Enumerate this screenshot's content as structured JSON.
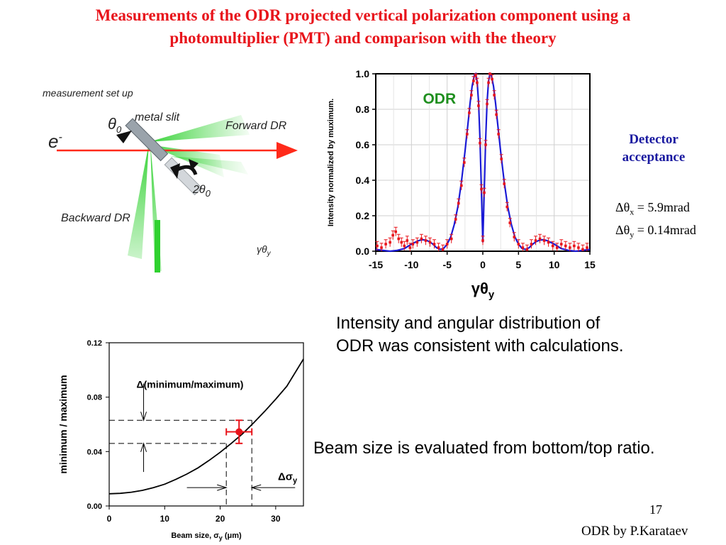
{
  "title": {
    "line1": "Measurements of the ODR projected vertical polarization component using a",
    "line2": "photomultiplier (PMT) and comparison with the theory"
  },
  "setup": {
    "heading": "measurement set up",
    "metal_slit": "metal slit",
    "forward_dr": "Forward DR",
    "backward_dr": "Backward DR",
    "electron": "e",
    "electron_sup": "-",
    "theta0": "θ",
    "theta0_sub": "0",
    "two_theta0": "2θ",
    "two_theta0_sub": "0",
    "gamma_theta_y": "γθ",
    "gamma_theta_y_sub": "y"
  },
  "detector": {
    "heading_line1": "Detector",
    "heading_line2": "acceptance",
    "x_prefix": "Δθ",
    "x_sub": "x",
    "x_value": "= 5.9mrad",
    "y_prefix": "Δθ",
    "y_sub": "y",
    "y_value": "= 0.14mrad"
  },
  "notes": {
    "odr_line1": "Intensity and angular distribution of",
    "odr_line2": "ODR was consistent with calculations.",
    "beam": "Beam size is evaluated from bottom/top ratio."
  },
  "footer": {
    "page": "17",
    "author": "ODR by P.Karataev"
  },
  "colors": {
    "title": "#e8141b",
    "theory_line": "#1a1ad6",
    "measured_points": "#e8141b",
    "odr_label": "#1f8f1f",
    "detector_text": "#1a1aa0",
    "dr_green": "#2fd12f",
    "beam_arrow": "#ff2a1a"
  },
  "chart_data": [
    {
      "type": "line",
      "title": "ODR",
      "xlabel": "γθ",
      "xlabel_sub": "y",
      "ylabel": "Intensity normalized by muximum.",
      "xlim": [
        -15,
        15
      ],
      "ylim": [
        0,
        1.0
      ],
      "xticks": [
        -15,
        -10,
        -5,
        0,
        5,
        10,
        15
      ],
      "xtick_labels": [
        "-15",
        "-10",
        "-5",
        "0",
        "5",
        "10",
        "15"
      ],
      "yticks": [
        0,
        0.2,
        0.4,
        0.6,
        0.8,
        1.0
      ],
      "ytick_labels": [
        "0.0",
        "0.2",
        "0.4",
        "0.6",
        "0.8",
        "1.0"
      ],
      "grid": true,
      "series": [
        {
          "name": "theory",
          "style": "line",
          "x": [
            -15,
            -14,
            -13,
            -12,
            -11,
            -10,
            -9,
            -8.5,
            -8,
            -7.5,
            -7,
            -6.5,
            -6,
            -5.5,
            -5,
            -4.5,
            -4,
            -3.5,
            -3,
            -2.5,
            -2,
            -1.8,
            -1.5,
            -1.2,
            -1,
            -0.8,
            -0.6,
            -0.4,
            -0.2,
            0,
            0.2,
            0.4,
            0.6,
            0.8,
            1,
            1.2,
            1.5,
            1.8,
            2,
            2.5,
            3,
            3.5,
            4,
            4.5,
            5,
            5.5,
            6,
            6.5,
            7,
            7.5,
            8,
            8.5,
            9,
            10,
            11,
            12,
            13,
            14,
            15
          ],
          "y": [
            0.01,
            0.005,
            0.0,
            0.005,
            0.015,
            0.04,
            0.06,
            0.065,
            0.063,
            0.055,
            0.04,
            0.02,
            0.01,
            0.015,
            0.04,
            0.08,
            0.15,
            0.25,
            0.39,
            0.56,
            0.75,
            0.83,
            0.93,
            0.99,
            1.0,
            0.96,
            0.84,
            0.63,
            0.34,
            0.05,
            0.34,
            0.63,
            0.84,
            0.96,
            1.0,
            0.99,
            0.93,
            0.83,
            0.75,
            0.56,
            0.39,
            0.25,
            0.15,
            0.08,
            0.04,
            0.015,
            0.01,
            0.02,
            0.04,
            0.055,
            0.063,
            0.065,
            0.06,
            0.04,
            0.015,
            0.005,
            0.0,
            0.005,
            0.01
          ]
        },
        {
          "name": "measurement",
          "style": "points",
          "x": [
            -14.8,
            -14.2,
            -13.6,
            -13.0,
            -12.6,
            -12.2,
            -11.8,
            -11.4,
            -11.0,
            -10.6,
            -10.2,
            -9.8,
            -9.2,
            -8.6,
            -8.0,
            -7.4,
            -6.8,
            -6.2,
            -5.6,
            -5.0,
            -4.4,
            -3.8,
            -3.4,
            -3.0,
            -2.6,
            -2.2,
            -1.9,
            -1.6,
            -1.3,
            -1.0,
            -0.8,
            -0.6,
            -0.4,
            -0.2,
            0.0,
            0.2,
            0.4,
            0.6,
            0.8,
            1.0,
            1.3,
            1.6,
            1.9,
            2.2,
            2.6,
            3.0,
            3.4,
            3.8,
            4.4,
            5.0,
            5.6,
            6.2,
            6.8,
            7.4,
            8.0,
            8.6,
            9.2,
            9.8,
            10.4,
            11.0,
            11.6,
            12.2,
            12.8,
            13.4,
            14.0,
            14.6
          ],
          "y": [
            0.03,
            0.02,
            0.04,
            0.05,
            0.09,
            0.11,
            0.07,
            0.05,
            0.03,
            0.06,
            0.02,
            0.04,
            0.05,
            0.07,
            0.06,
            0.05,
            0.04,
            0.02,
            0.01,
            0.04,
            0.07,
            0.18,
            0.27,
            0.37,
            0.5,
            0.66,
            0.78,
            0.88,
            0.96,
            0.99,
            0.95,
            0.82,
            0.61,
            0.35,
            0.06,
            0.33,
            0.6,
            0.83,
            0.95,
            1.0,
            0.97,
            0.88,
            0.77,
            0.66,
            0.52,
            0.38,
            0.25,
            0.16,
            0.08,
            0.04,
            0.02,
            0.01,
            0.04,
            0.06,
            0.07,
            0.06,
            0.05,
            0.03,
            0.02,
            0.04,
            0.03,
            0.02,
            0.03,
            0.02,
            0.01,
            0.02
          ],
          "error": 0.025
        }
      ]
    },
    {
      "type": "line",
      "title": "",
      "xlabel": "Beam size, σ",
      "xlabel_sub": "y",
      "xlabel_suffix": " (μm)",
      "ylabel": "minimum / maximum",
      "xlim": [
        0,
        35
      ],
      "ylim": [
        0,
        0.12
      ],
      "xticks": [
        0,
        10,
        20,
        30
      ],
      "xtick_labels": [
        "0",
        "10",
        "20",
        "30"
      ],
      "yticks": [
        0,
        0.04,
        0.08,
        0.12
      ],
      "ytick_labels": [
        "0.00",
        "0.04",
        "0.08",
        "0.12"
      ],
      "grid": false,
      "annotations": {
        "ratio_label": "Δ(minimum/maximum)",
        "sigma_label": "Δσ",
        "sigma_label_sub": "y"
      },
      "series": [
        {
          "name": "calculation",
          "style": "line",
          "x": [
            0,
            2,
            4,
            6,
            8,
            10,
            12,
            14,
            16,
            18,
            20,
            22,
            24,
            26,
            28,
            30,
            32,
            35
          ],
          "y": [
            0.009,
            0.0093,
            0.0101,
            0.0115,
            0.0135,
            0.016,
            0.0195,
            0.0235,
            0.028,
            0.0335,
            0.0395,
            0.046,
            0.053,
            0.061,
            0.0695,
            0.0785,
            0.088,
            0.108
          ]
        },
        {
          "name": "measured",
          "style": "point",
          "x": [
            23.4
          ],
          "y": [
            0.0545
          ],
          "xerr": [
            2.3
          ],
          "yerr": [
            0.0085
          ]
        }
      ],
      "guides": {
        "ratio_low": 0.046,
        "ratio_high": 0.063,
        "sigma_low": 21.1,
        "sigma_high": 25.7
      }
    }
  ]
}
